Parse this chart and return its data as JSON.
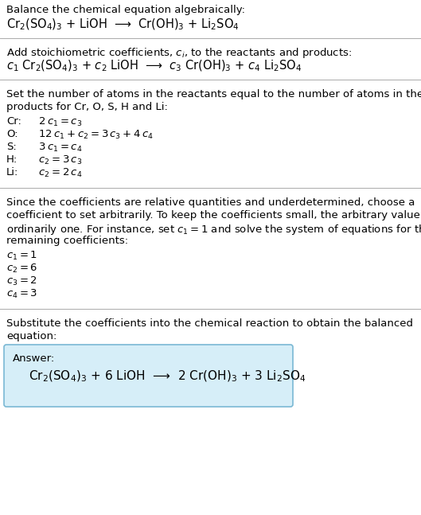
{
  "title": "Balance the chemical equation algebraically:",
  "equation1": "Cr$_2$(SO$_4$)$_3$ + LiOH  ⟶  Cr(OH)$_3$ + Li$_2$SO$_4$",
  "section2_title": "Add stoichiometric coefficients, $c_i$, to the reactants and products:",
  "equation2": "$c_1$ Cr$_2$(SO$_4$)$_3$ + $c_2$ LiOH  ⟶  $c_3$ Cr(OH)$_3$ + $c_4$ Li$_2$SO$_4$",
  "section3_title_1": "Set the number of atoms in the reactants equal to the number of atoms in the",
  "section3_title_2": "products for Cr, O, S, H and Li:",
  "section4_title_1": "Since the coefficients are relative quantities and underdetermined, choose a",
  "section4_title_2": "coefficient to set arbitrarily. To keep the coefficients small, the arbitrary value is",
  "section4_title_3": "ordinarily one. For instance, set $c_1 = 1$ and solve the system of equations for the",
  "section4_title_4": "remaining coefficients:",
  "section5_title_1": "Substitute the coefficients into the chemical reaction to obtain the balanced",
  "section5_title_2": "equation:",
  "answer_label": "Answer:",
  "answer_eq": "Cr$_2$(SO$_4$)$_3$ + 6 LiOH  ⟶  2 Cr(OH)$_3$ + 3 Li$_2$SO$_4$",
  "bg_color": "#ffffff",
  "text_color": "#000000",
  "mono_font": "DejaVu Sans Mono",
  "answer_box_color": "#d6eef8",
  "answer_box_edge": "#7ab8d4",
  "separator_color": "#aaaaaa",
  "body_fontsize": 9.5,
  "eq_fontsize": 10.5
}
